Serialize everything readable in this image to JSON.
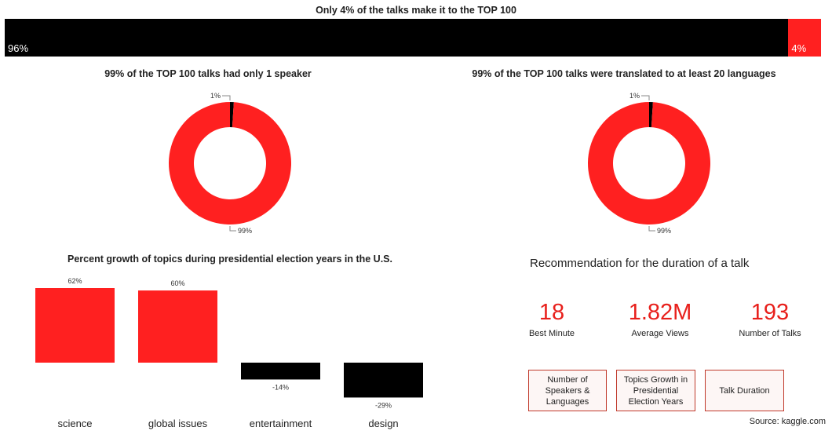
{
  "top_chart": {
    "title": "Only 4% of the talks make it to the TOP 100",
    "chart_data": {
      "type": "bar",
      "stacked": true,
      "orientation": "horizontal",
      "series": [
        {
          "values": [
            96
          ],
          "label": "96%",
          "color": "#000000"
        },
        {
          "values": [
            4
          ],
          "label": "4%",
          "color": "#ff2020"
        }
      ]
    }
  },
  "donut_speakers": {
    "title": "99% of the TOP 100 talks had only 1 speaker",
    "chart_data": {
      "type": "pie",
      "donut": true,
      "slices": [
        {
          "value": 99,
          "label": "99%",
          "color": "#ff2020"
        },
        {
          "value": 1,
          "label": "1%",
          "color": "#000000"
        }
      ]
    }
  },
  "donut_languages": {
    "title": "99% of the TOP 100 talks were translated to at least 20 languages",
    "chart_data": {
      "type": "pie",
      "donut": true,
      "slices": [
        {
          "value": 99,
          "label": "99%",
          "color": "#ff2020"
        },
        {
          "value": 1,
          "label": "1%",
          "color": "#000000"
        }
      ]
    }
  },
  "growth_chart": {
    "title": "Percent growth of topics during presidential election years in the U.S.",
    "chart_data": {
      "type": "bar",
      "categories": [
        "science",
        "global issues",
        "entertainment",
        "design"
      ],
      "values": [
        62,
        60,
        -14,
        -29
      ],
      "labels": [
        "62%",
        "60%",
        "-14%",
        "-29%"
      ],
      "positive_color": "#ff2020",
      "negative_color": "#000000"
    }
  },
  "recommendation": {
    "title": "Recommendation for the duration of a talk",
    "kpis": [
      {
        "value": "18",
        "label": "Best Minute"
      },
      {
        "value": "1.82M",
        "label": "Average Views"
      },
      {
        "value": "193",
        "label": "Number of Talks"
      }
    ]
  },
  "nav": {
    "speakers_languages": "Number of Speakers & Languages",
    "topics_growth": "Topics Growth in Presidential Election Years",
    "talk_duration": "Talk Duration"
  },
  "source": "Source: kaggle.com"
}
